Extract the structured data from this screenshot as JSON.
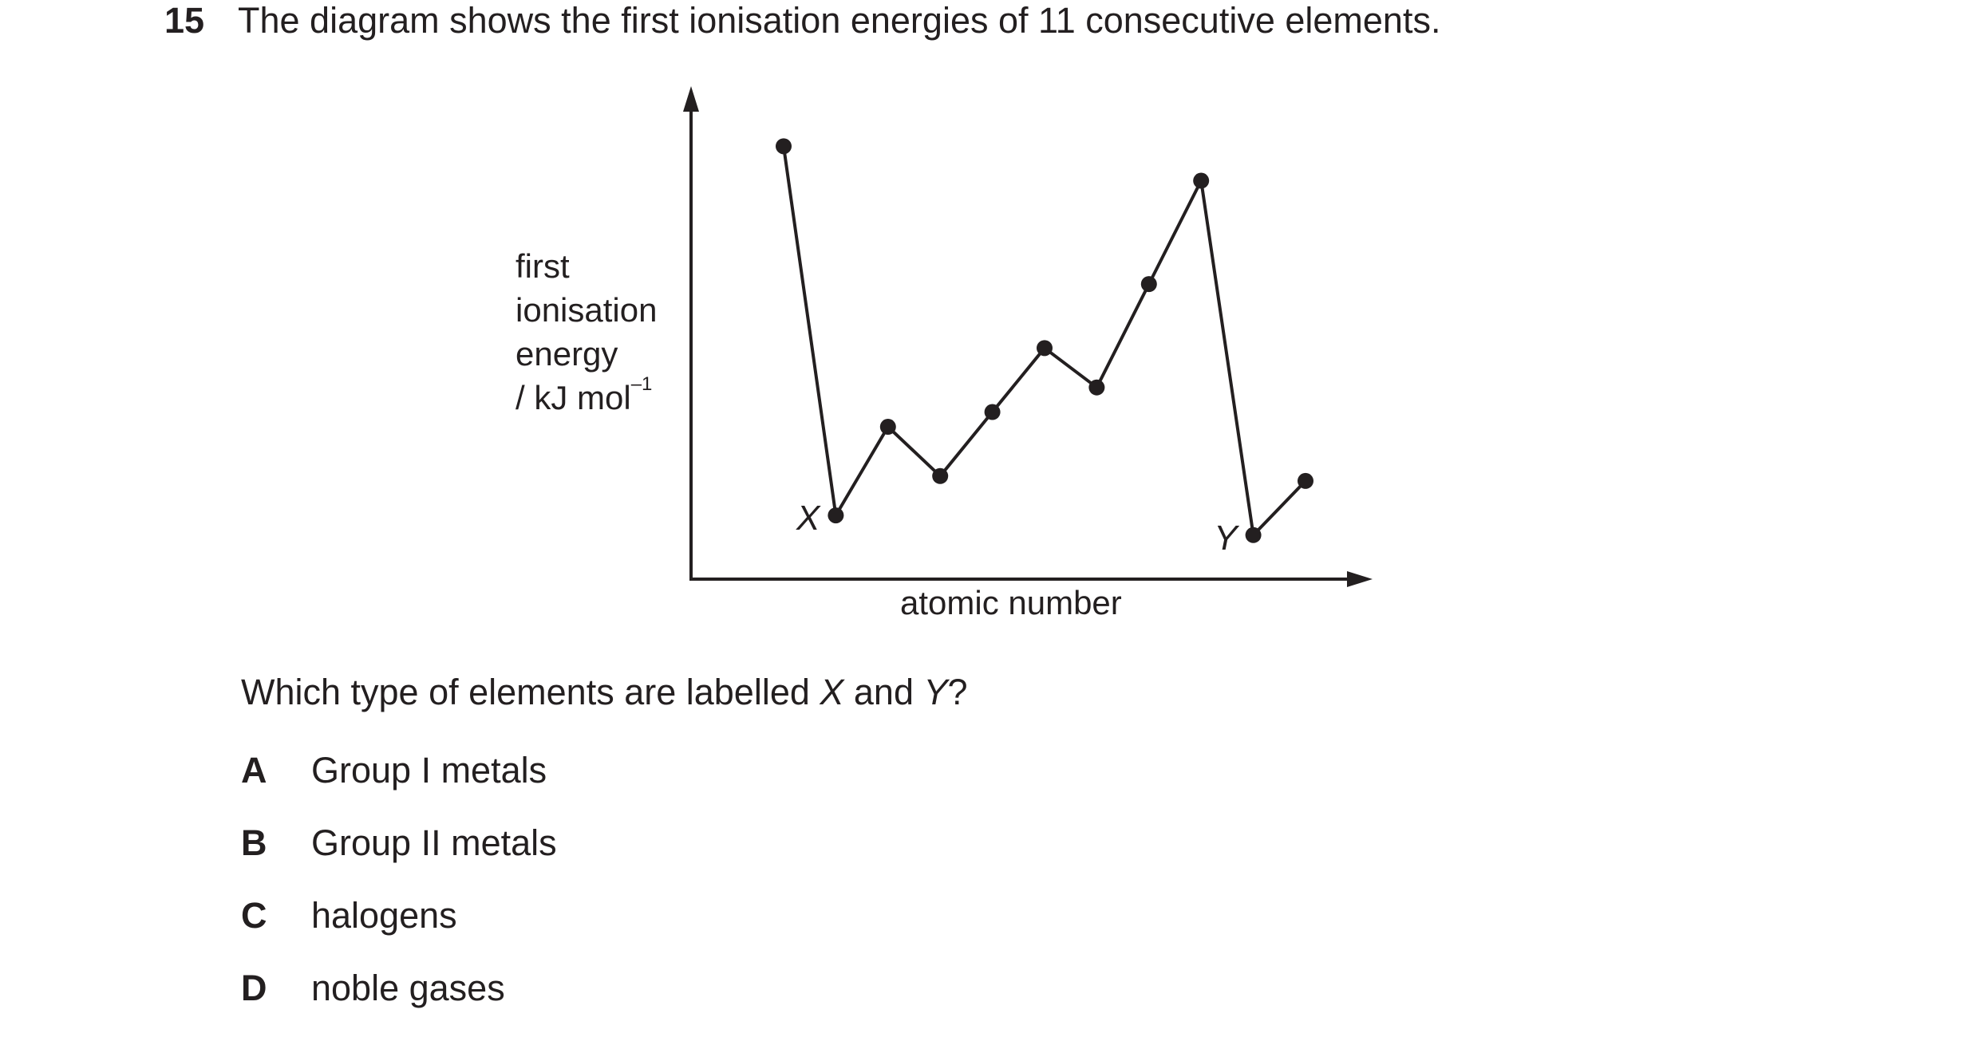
{
  "question": {
    "number": "15",
    "text": "The diagram shows the first ionisation energies of 11 consecutive elements.",
    "prompt_before": "Which type of elements are labelled ",
    "prompt_x": "X",
    "prompt_and": " and ",
    "prompt_y": "Y",
    "prompt_after": "?"
  },
  "chart_data": {
    "type": "line",
    "xlabel": "atomic number",
    "ylabel_lines": [
      "first",
      "ionisation",
      "energy"
    ],
    "ylabel_unit": "/ kJ mol",
    "ylabel_unit_sup": "–1",
    "x": [
      1,
      2,
      3,
      4,
      5,
      6,
      7,
      8,
      9,
      10,
      11
    ],
    "values": [
      9.2,
      1.7,
      3.5,
      2.5,
      3.8,
      5.1,
      4.3,
      6.4,
      8.5,
      1.3,
      2.4
    ],
    "ylim": [
      0,
      10
    ],
    "grid": false,
    "point_labels": [
      {
        "index": 1,
        "text": "X"
      },
      {
        "index": 9,
        "text": "Y"
      }
    ]
  },
  "options": [
    {
      "letter": "A",
      "text": "Group I metals"
    },
    {
      "letter": "B",
      "text": "Group II metals"
    },
    {
      "letter": "C",
      "text": "halogens"
    },
    {
      "letter": "D",
      "text": "noble gases"
    }
  ]
}
